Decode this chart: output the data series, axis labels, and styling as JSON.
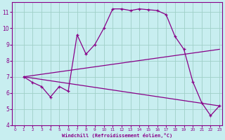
{
  "xlabel": "Windchill (Refroidissement éolien,°C)",
  "xlim": [
    -0.3,
    23.3
  ],
  "ylim": [
    4,
    11.6
  ],
  "yticks": [
    4,
    5,
    6,
    7,
    8,
    9,
    10,
    11
  ],
  "xticks": [
    0,
    1,
    2,
    3,
    4,
    5,
    6,
    7,
    8,
    9,
    10,
    11,
    12,
    13,
    14,
    15,
    16,
    17,
    18,
    19,
    20,
    21,
    22,
    23
  ],
  "bg_color": "#c8eef0",
  "grid_color": "#a0cfc8",
  "line_color": "#880088",
  "series_main": {
    "x": [
      1,
      2,
      3,
      4,
      5,
      6,
      7,
      8,
      9,
      10,
      11,
      12,
      13,
      14,
      15,
      16,
      17,
      18,
      19,
      20,
      21,
      22,
      23
    ],
    "y": [
      7.0,
      6.65,
      6.4,
      5.75,
      6.4,
      6.1,
      9.6,
      8.4,
      9.0,
      10.0,
      11.2,
      11.2,
      11.1,
      11.2,
      11.15,
      11.1,
      10.85,
      9.5,
      8.7,
      6.7,
      5.4,
      4.6,
      5.2
    ]
  },
  "series_upper": {
    "x": [
      1,
      23
    ],
    "y": [
      7.0,
      8.7
    ]
  },
  "series_lower": {
    "x": [
      1,
      23
    ],
    "y": [
      7.0,
      5.2
    ]
  }
}
